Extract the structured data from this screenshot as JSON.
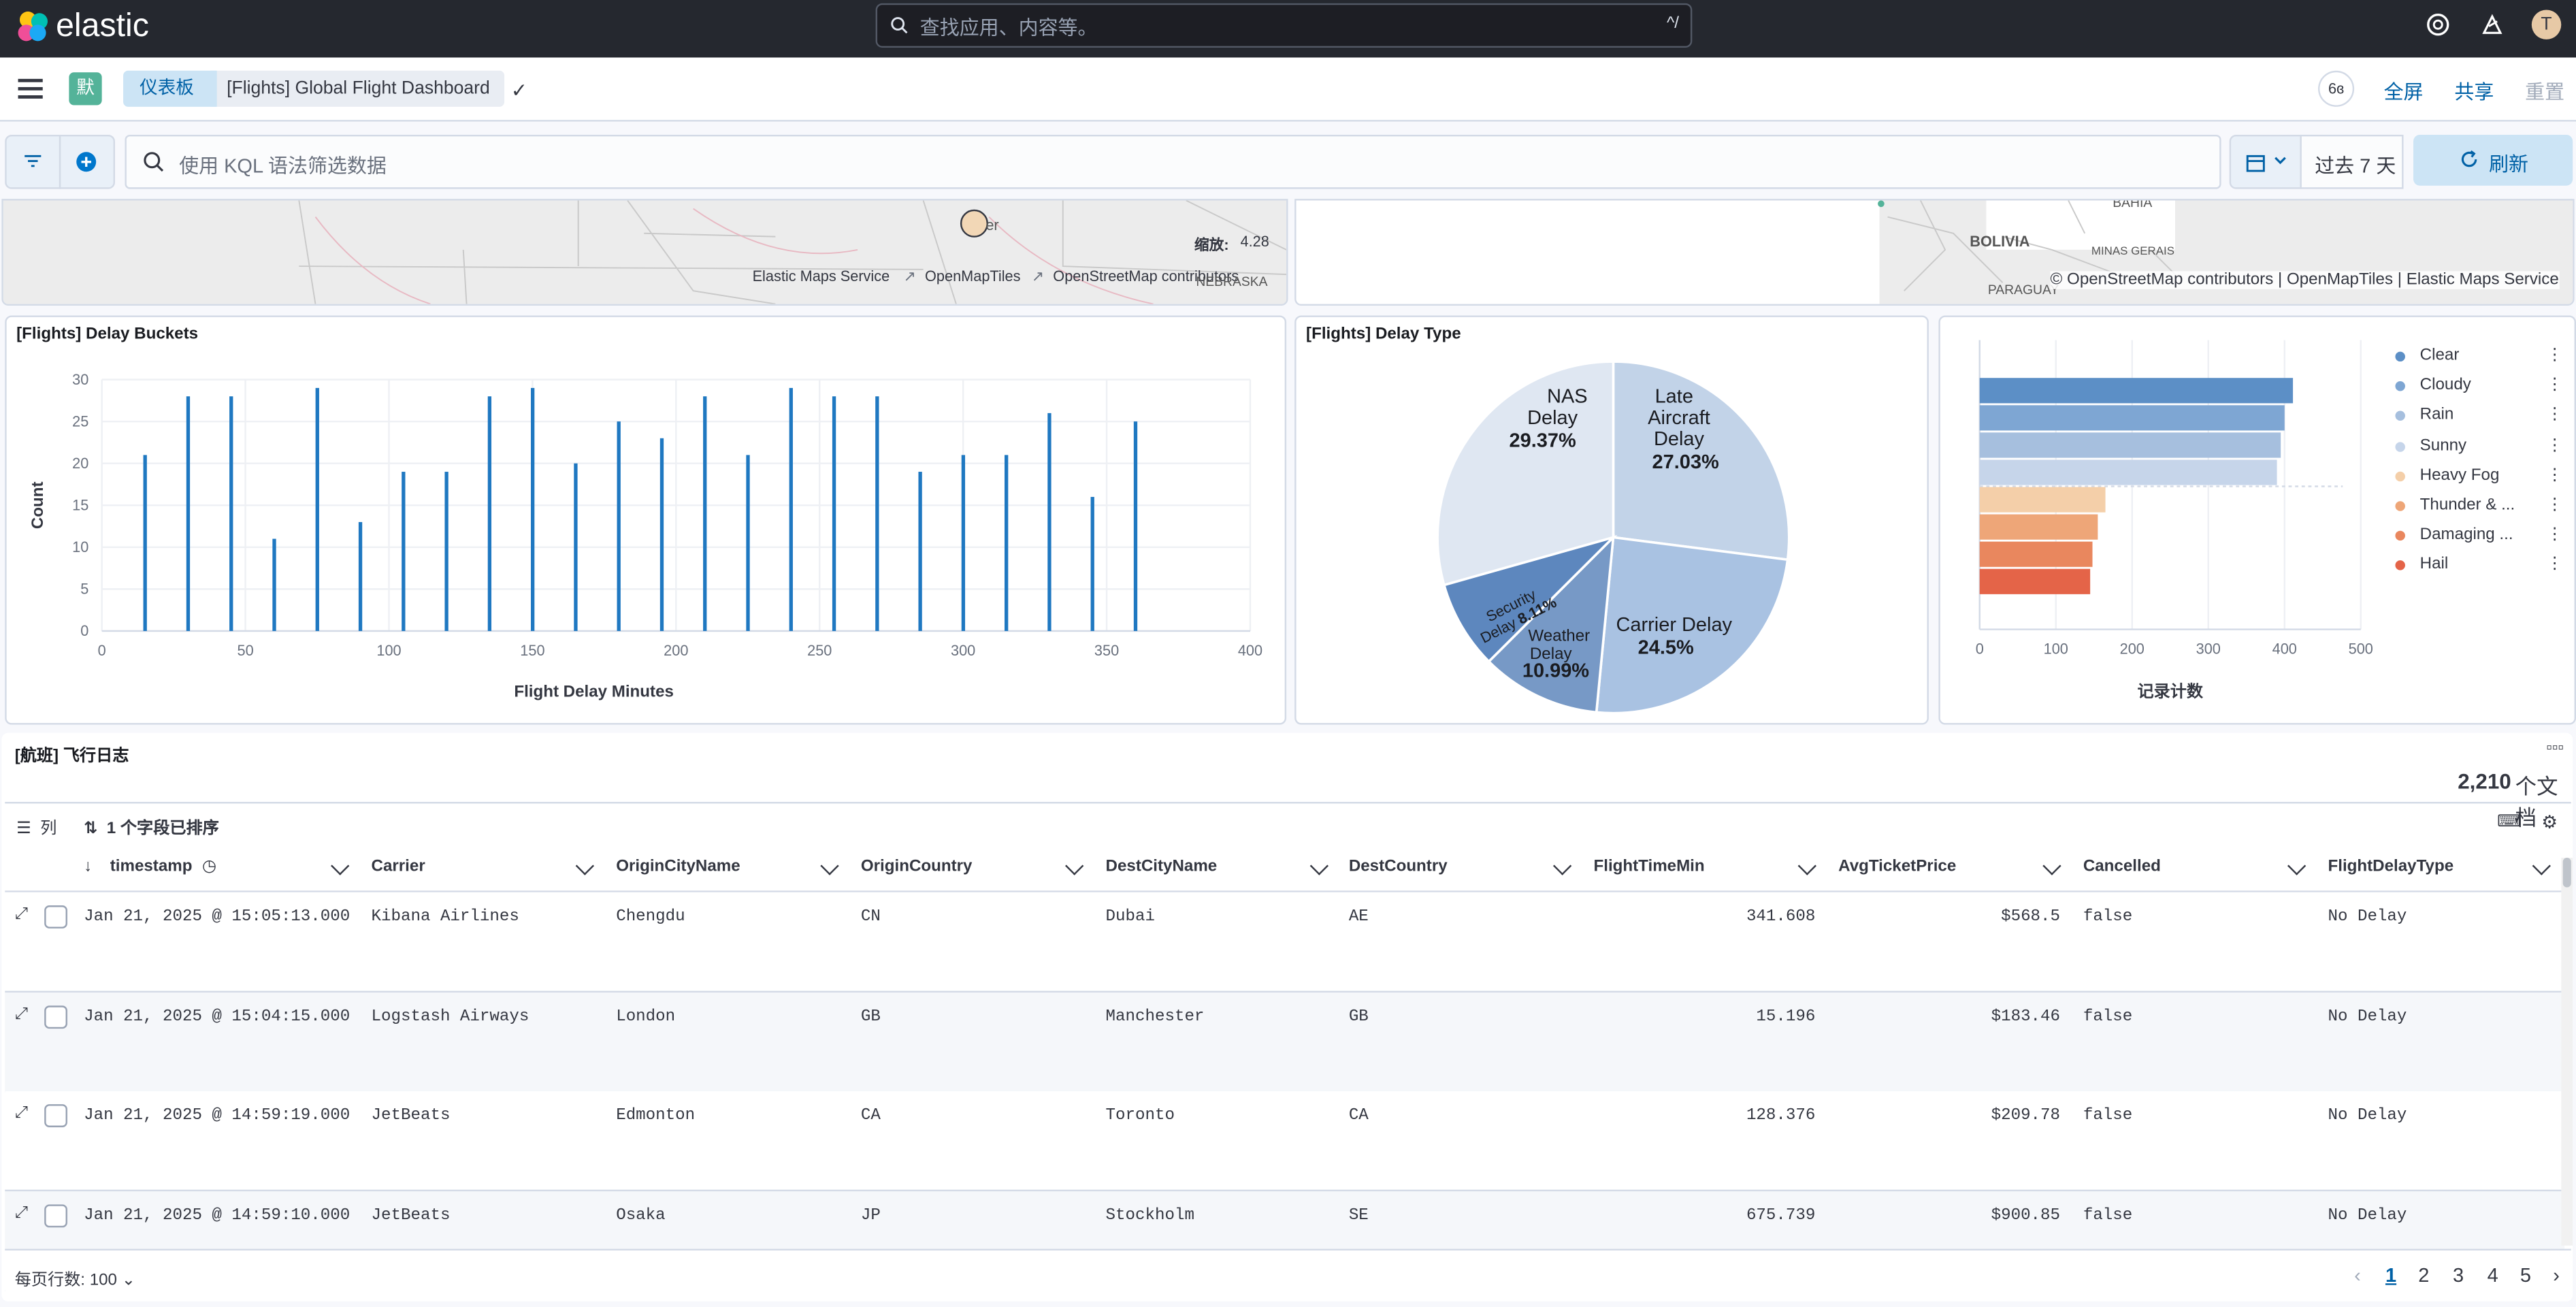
{
  "app": {
    "logo_text": "elastic",
    "search_placeholder": "查找应用、内容等。",
    "search_shortcut": "^/",
    "avatar": "T"
  },
  "header": {
    "space_badge": "默",
    "breadcrumb": [
      "仪表板",
      "[Flights] Global Flight Dashboard"
    ],
    "links": [
      "全屏",
      "共享",
      "重置"
    ],
    "glasses": "6ɞ"
  },
  "query": {
    "placeholder": "使用 KQL 语法筛选数据",
    "range": "过去 7 天",
    "refresh": "刷新"
  },
  "maps": {
    "left": {
      "zoom_label": "缩放:",
      "zoom": "4.28",
      "attr": [
        "Elastic Maps Service",
        "OpenMapTiles",
        "OpenStreetMap contributors"
      ],
      "places": [
        "NEBRASKA"
      ]
    },
    "right": {
      "attr": "© OpenStreetMap contributors | OpenMapTiles | Elastic Maps Service",
      "places": [
        "BAHIA",
        "BOLIVIA",
        "MINAS GERAIS",
        "PARAGUAY"
      ]
    }
  },
  "charts": {
    "delay_buckets": {
      "title": "[Flights] Delay Buckets"
    },
    "delay_type": {
      "title": "[Flights] Delay Type"
    },
    "weather": {
      "xlabel": "记录计数"
    }
  },
  "chart_data": [
    {
      "type": "bar",
      "title": "[Flights] Delay Buckets",
      "xlabel": "Flight Delay Minutes",
      "ylabel": "Count",
      "xlim": [
        0,
        400
      ],
      "ylim": [
        0,
        30
      ],
      "x": [
        15,
        30,
        45,
        60,
        75,
        90,
        105,
        120,
        135,
        150,
        165,
        180,
        195,
        210,
        225,
        240,
        255,
        270,
        285,
        300,
        315,
        330,
        345,
        360
      ],
      "values": [
        21,
        28,
        28,
        11,
        29,
        13,
        19,
        19,
        28,
        29,
        20,
        25,
        23,
        28,
        21,
        29,
        28,
        28,
        19,
        21,
        21,
        26,
        16,
        25
      ],
      "color": "#1f78c1",
      "xticks": [
        0,
        50,
        100,
        150,
        200,
        250,
        300,
        350,
        400
      ],
      "yticks": [
        0,
        5,
        10,
        15,
        20,
        25,
        30
      ]
    },
    {
      "type": "pie",
      "title": "[Flights] Delay Type",
      "slices": [
        {
          "label": "Late Aircraft Delay",
          "value": 27.03,
          "pct": "27.03%",
          "color": "#c2d3e8"
        },
        {
          "label": "Carrier Delay",
          "value": 24.5,
          "pct": "24.5%",
          "color": "#a9c2e2"
        },
        {
          "label": "Weather Delay",
          "value": 10.99,
          "pct": "10.99%",
          "color": "#7799c6"
        },
        {
          "label": "Security Delay",
          "value": 8.11,
          "pct": "8.11%",
          "color": "#5d87be"
        },
        {
          "label": "NAS Delay",
          "value": 29.37,
          "pct": "29.37%",
          "color": "#dfe7f2"
        }
      ]
    },
    {
      "type": "bar",
      "orientation": "horizontal",
      "xlabel": "记录计数",
      "xlim": [
        0,
        500
      ],
      "xticks": [
        0,
        100,
        200,
        300,
        400,
        500
      ],
      "categories": [
        "Clear",
        "Cloudy",
        "Rain",
        "Sunny",
        "Heavy Fog",
        "Thunder & ...",
        "Damaging ...",
        "Hail"
      ],
      "values": [
        411,
        400,
        395,
        390,
        165,
        155,
        148,
        145
      ],
      "colors": [
        "#5c8fc6",
        "#7ea6d3",
        "#a6bfde",
        "#c6d5ea",
        "#f4cfa9",
        "#eea678",
        "#e9875e",
        "#e46448"
      ],
      "legend": "right"
    }
  ],
  "table": {
    "title": "[航班] 飞行日志",
    "count": "2,210",
    "count_unit": "个文档",
    "columns_label": "列",
    "sort_label": "1 个字段已排序",
    "columns": [
      "timestamp",
      "Carrier",
      "OriginCityName",
      "OriginCountry",
      "DestCityName",
      "DestCountry",
      "FlightTimeMin",
      "AvgTicketPrice",
      "Cancelled",
      "FlightDelayType"
    ],
    "rows": [
      [
        "Jan 21, 2025 @ 15:05:13.000",
        "Kibana Airlines",
        "Chengdu",
        "CN",
        "Dubai",
        "AE",
        "341.608",
        "$568.5",
        "false",
        "No Delay"
      ],
      [
        "Jan 21, 2025 @ 15:04:15.000",
        "Logstash Airways",
        "London",
        "GB",
        "Manchester",
        "GB",
        "15.196",
        "$183.46",
        "false",
        "No Delay"
      ],
      [
        "Jan 21, 2025 @ 14:59:19.000",
        "JetBeats",
        "Edmonton",
        "CA",
        "Toronto",
        "CA",
        "128.376",
        "$209.78",
        "false",
        "No Delay"
      ],
      [
        "Jan 21, 2025 @ 14:59:10.000",
        "JetBeats",
        "Osaka",
        "JP",
        "Stockholm",
        "SE",
        "675.739",
        "$900.85",
        "false",
        "No Delay"
      ]
    ],
    "rows_per_page": "每页行数: 100",
    "pages": [
      "1",
      "2",
      "3",
      "4",
      "5"
    ]
  }
}
